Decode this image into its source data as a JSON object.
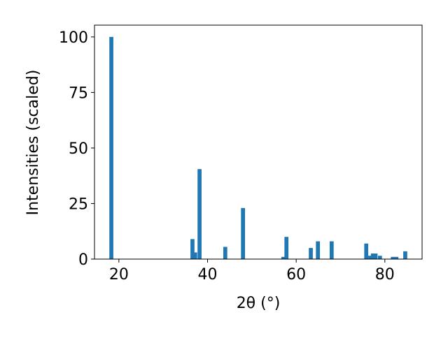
{
  "chart_data": {
    "type": "bar",
    "xlabel": "2θ (°)",
    "ylabel": "Intensities (scaled)",
    "x": [
      18.3,
      36.6,
      37.2,
      38.2,
      44.0,
      48.0,
      57.1,
      57.8,
      63.3,
      64.9,
      68.0,
      75.8,
      76.7,
      77.3,
      77.9,
      78.9,
      81.8,
      82.6,
      84.6
    ],
    "values": [
      100,
      9,
      3,
      40.5,
      5.5,
      23,
      1,
      10,
      5,
      8,
      8,
      7,
      1.5,
      2.5,
      2.5,
      1.5,
      1,
      1,
      3.5
    ],
    "color": "#1f77b4",
    "xlim": [
      14.5,
      88.4
    ],
    "xticks": [
      20,
      40,
      60,
      80
    ],
    "ylim": [
      0,
      105.3
    ],
    "yticks": [
      0,
      25,
      50,
      75,
      100
    ]
  }
}
